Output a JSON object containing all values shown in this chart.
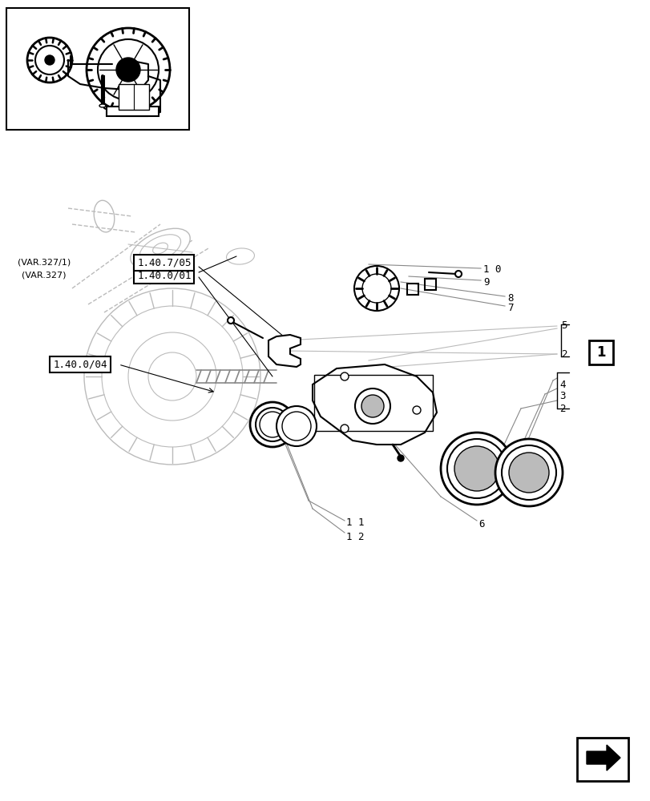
{
  "bg_color": "#ffffff",
  "line_color": "#000000",
  "gray_color": "#888888",
  "light_gray": "#bbbbbb",
  "fig_width": 8.12,
  "fig_height": 10.0,
  "labels": {
    "ref_140_04": "1.40.0/04",
    "ref_140_01": "1.40.0/01",
    "ref_1407_05": "1.40.7/05",
    "var327": "(VAR.327)",
    "var327_1": "(VAR.327/1)"
  },
  "part_numbers": [
    "1 2",
    "1 1",
    "6",
    "2",
    "3",
    "4",
    "2",
    "5",
    "7",
    "8",
    "9",
    "1 0"
  ],
  "arrow_box_label": "1"
}
